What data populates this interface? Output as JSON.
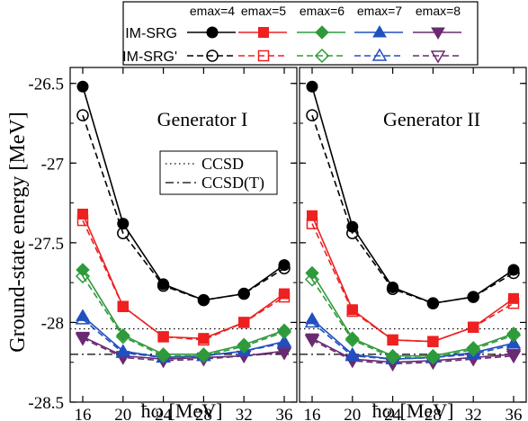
{
  "chart_data": {
    "type": "line",
    "ylabel": "Ground-state energy [MeV]",
    "xlabel": "ħω [MeV]",
    "x": [
      16,
      20,
      24,
      28,
      32,
      36
    ],
    "xticks": [
      "16",
      "20",
      "24",
      "28",
      "32",
      "36"
    ],
    "ylim": [
      -28.5,
      -26.4
    ],
    "yticks": [
      -28.5,
      -28,
      -27.5,
      -27,
      -26.5
    ],
    "ytick_labels": [
      "-28.5",
      "-28",
      "-27.5",
      "-27",
      "-26.5"
    ],
    "legend": {
      "placement": "top",
      "methods": [
        "IM-SRG",
        "IM-SRG'"
      ],
      "emax_labels": [
        "emax=4",
        "emax=5",
        "emax=6",
        "emax=7",
        "emax=8"
      ],
      "colors": [
        "#000000",
        "#ee2020",
        "#2e9a3a",
        "#2050c0",
        "#6a2a72"
      ],
      "markers": [
        "circle",
        "square",
        "diamond",
        "triangle-up",
        "triangle-down"
      ]
    },
    "reference_lines": [
      {
        "label": "CCSD",
        "style": "dotted",
        "y": -28.04
      },
      {
        "label": "CCSD(T)",
        "style": "dash-dot",
        "y": -28.2
      }
    ],
    "panels": [
      {
        "title": "Generator I",
        "series": [
          {
            "emax": 4,
            "method": "IM-SRG",
            "values": [
              -26.52,
              -27.38,
              -27.76,
              -27.86,
              -27.82,
              -27.64
            ]
          },
          {
            "emax": 4,
            "method": "IM-SRG'",
            "values": [
              -26.7,
              -27.44,
              -27.77,
              -27.86,
              -27.82,
              -27.66
            ]
          },
          {
            "emax": 5,
            "method": "IM-SRG",
            "values": [
              -27.32,
              -27.9,
              -28.09,
              -28.1,
              -28.0,
              -27.82
            ]
          },
          {
            "emax": 5,
            "method": "IM-SRG'",
            "values": [
              -27.36,
              -27.9,
              -28.09,
              -28.11,
              -28.0,
              -27.84
            ]
          },
          {
            "emax": 6,
            "method": "IM-SRG",
            "values": [
              -27.67,
              -28.08,
              -28.2,
              -28.2,
              -28.14,
              -28.05
            ]
          },
          {
            "emax": 6,
            "method": "IM-SRG'",
            "values": [
              -27.71,
              -28.09,
              -28.21,
              -28.21,
              -28.15,
              -28.06
            ]
          },
          {
            "emax": 7,
            "method": "IM-SRG",
            "values": [
              -27.96,
              -28.18,
              -28.22,
              -28.21,
              -28.18,
              -28.12
            ]
          },
          {
            "emax": 7,
            "method": "IM-SRG'",
            "values": [
              -27.98,
              -28.19,
              -28.22,
              -28.21,
              -28.18,
              -28.13
            ]
          },
          {
            "emax": 8,
            "method": "IM-SRG",
            "values": [
              -28.09,
              -28.21,
              -28.23,
              -28.22,
              -28.21,
              -28.18
            ]
          },
          {
            "emax": 8,
            "method": "IM-SRG'",
            "values": [
              -28.1,
              -28.22,
              -28.24,
              -28.23,
              -28.21,
              -28.19
            ]
          }
        ]
      },
      {
        "title": "Generator II",
        "series": [
          {
            "emax": 4,
            "method": "IM-SRG",
            "values": [
              -26.52,
              -27.4,
              -27.78,
              -27.88,
              -27.84,
              -27.67
            ]
          },
          {
            "emax": 4,
            "method": "IM-SRG'",
            "values": [
              -26.7,
              -27.44,
              -27.79,
              -27.88,
              -27.84,
              -27.69
            ]
          },
          {
            "emax": 5,
            "method": "IM-SRG",
            "values": [
              -27.33,
              -27.92,
              -28.11,
              -28.12,
              -28.03,
              -27.85
            ]
          },
          {
            "emax": 5,
            "method": "IM-SRG'",
            "values": [
              -27.38,
              -27.93,
              -28.11,
              -28.12,
              -28.03,
              -27.88
            ]
          },
          {
            "emax": 6,
            "method": "IM-SRG",
            "values": [
              -27.69,
              -28.1,
              -28.21,
              -28.21,
              -28.16,
              -28.07
            ]
          },
          {
            "emax": 6,
            "method": "IM-SRG'",
            "values": [
              -27.73,
              -28.11,
              -28.22,
              -28.22,
              -28.17,
              -28.08
            ]
          },
          {
            "emax": 7,
            "method": "IM-SRG",
            "values": [
              -27.98,
              -28.2,
              -28.23,
              -28.22,
              -28.19,
              -28.13
            ]
          },
          {
            "emax": 7,
            "method": "IM-SRG'",
            "values": [
              -28.0,
              -28.21,
              -28.23,
              -28.22,
              -28.2,
              -28.14
            ]
          },
          {
            "emax": 8,
            "method": "IM-SRG",
            "values": [
              -28.1,
              -28.23,
              -28.25,
              -28.24,
              -28.22,
              -28.2
            ]
          },
          {
            "emax": 8,
            "method": "IM-SRG'",
            "values": [
              -28.11,
              -28.24,
              -28.26,
              -28.25,
              -28.23,
              -28.21
            ]
          }
        ]
      }
    ]
  }
}
